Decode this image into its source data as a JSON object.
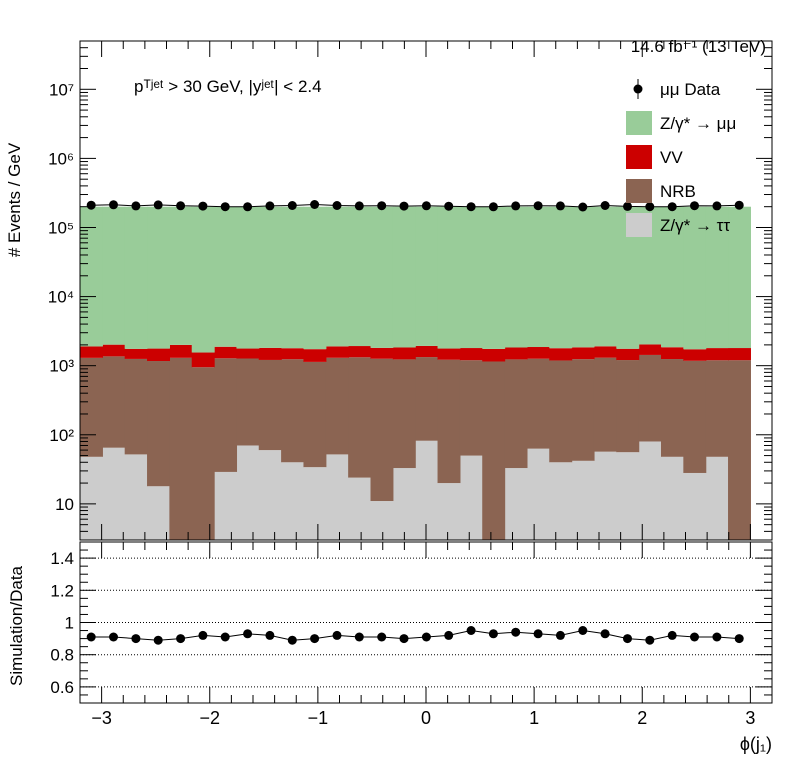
{
  "chart_data": {
    "type": "bar",
    "lumi_text": "14.6 fb⁻¹ (13 TeV)",
    "cut_text": "pᵀʲᵉᵗ > 30 GeV,  |yʲᵉᵗ| < 2.4",
    "ylabel": "# Events / GeV",
    "xlabel": "ϕ(j₁)",
    "ratio_ylabel": "Simulation/Data",
    "top_panel": {
      "yscale": "log",
      "ylim": [
        3,
        50000000
      ],
      "ytick_labels": [
        {
          "value": 10,
          "label": "10"
        },
        {
          "value": 100,
          "label": "10²"
        },
        {
          "value": 1000,
          "label": "10³"
        },
        {
          "value": 10000,
          "label": "10⁴"
        },
        {
          "value": 100000,
          "label": "10⁵"
        },
        {
          "value": 1000000,
          "label": "10⁶"
        },
        {
          "value": 10000000,
          "label": "10⁷"
        }
      ]
    },
    "ratio_panel": {
      "ylim": [
        0.5,
        1.5
      ],
      "ytick_labels": [
        "0.6",
        "0.8",
        "1",
        "1.2",
        "1.4"
      ],
      "ytick_values": [
        0.6,
        0.8,
        1.0,
        1.2,
        1.4
      ],
      "grid_lines": [
        0.6,
        0.8,
        1.0,
        1.2,
        1.4
      ],
      "values": [
        0.91,
        0.91,
        0.9,
        0.89,
        0.9,
        0.92,
        0.91,
        0.93,
        0.92,
        0.89,
        0.9,
        0.92,
        0.91,
        0.91,
        0.9,
        0.91,
        0.92,
        0.95,
        0.93,
        0.94,
        0.93,
        0.92,
        0.95,
        0.93,
        0.9,
        0.89,
        0.92,
        0.91,
        0.91,
        0.9
      ]
    },
    "x": {
      "range": [
        -3.2,
        3.2
      ],
      "tick_labels": [
        "−3",
        "−2",
        "−1",
        "0",
        "1",
        "2",
        "3"
      ],
      "tick_values": [
        -3,
        -2,
        -1,
        0,
        1,
        2,
        3
      ],
      "bin_edges": [
        -3.2,
        -2.9933,
        -2.7867,
        -2.58,
        -2.3733,
        -2.1667,
        -1.96,
        -1.7533,
        -1.5467,
        -1.34,
        -1.1333,
        -0.9267,
        -0.72,
        -0.5133,
        -0.3067,
        -0.1,
        0.1067,
        0.3133,
        0.52,
        0.7267,
        0.9333,
        1.14,
        1.3467,
        1.5533,
        1.76,
        1.9667,
        2.1733,
        2.38,
        2.5867,
        2.7933,
        3.0
      ]
    },
    "legend_position": "top-right",
    "legend": [
      {
        "name": "μμ Data",
        "kind": "marker",
        "color": "#000000"
      },
      {
        "name": "Z/γ* → μμ",
        "kind": "fill",
        "color": "#99cc99"
      },
      {
        "name": "VV",
        "kind": "fill",
        "color": "#cc0000"
      },
      {
        "name": "NRB",
        "kind": "fill",
        "color": "#8b6452"
      },
      {
        "name": "Z/γ* → ττ",
        "kind": "fill",
        "color": "#cccccc"
      }
    ],
    "series": [
      {
        "name": "Z/γ* → ττ",
        "color": "#cccccc",
        "values": [
          48,
          65,
          52,
          18,
          0,
          0,
          29,
          70,
          60,
          40,
          34,
          52,
          24,
          11,
          33,
          82,
          20,
          50,
          0,
          33,
          63,
          40,
          42,
          57,
          56,
          80,
          48,
          28,
          48,
          0
        ]
      },
      {
        "name": "NRB",
        "color": "#8b6452",
        "values": [
          1250,
          1300,
          1200,
          1150,
          1300,
          950,
          1250,
          1200,
          1150,
          1200,
          1100,
          1250,
          1300,
          1250,
          1200,
          1250,
          1200,
          1150,
          1150,
          1200,
          1200,
          1150,
          1200,
          1250,
          1150,
          1350,
          1200,
          1150,
          1150,
          1200
        ]
      },
      {
        "name": "VV",
        "color": "#cc0000",
        "values": [
          600,
          650,
          500,
          600,
          700,
          600,
          600,
          500,
          600,
          550,
          600,
          600,
          600,
          550,
          600,
          600,
          550,
          600,
          600,
          600,
          600,
          600,
          600,
          600,
          550,
          600,
          600,
          550,
          600,
          600
        ]
      },
      {
        "name": "Z/γ* → μμ",
        "color": "#99cc99",
        "values": [
          198000,
          198000,
          198000,
          198000,
          198000,
          198000,
          198000,
          198000,
          198000,
          198000,
          198000,
          198000,
          198000,
          198000,
          198000,
          198000,
          198000,
          198000,
          198000,
          198000,
          198000,
          198000,
          198000,
          198000,
          198000,
          198000,
          198000,
          198000,
          198000,
          198000
        ]
      }
    ],
    "data_points": {
      "name": "μμ Data",
      "values": [
        210000,
        213000,
        205000,
        212000,
        206000,
        204000,
        200000,
        199000,
        205000,
        208000,
        215000,
        208000,
        205000,
        207000,
        204000,
        206000,
        203000,
        200000,
        199000,
        205000,
        207000,
        205000,
        198000,
        208000,
        202000,
        200000,
        200000,
        207000,
        205000,
        210000
      ]
    }
  }
}
